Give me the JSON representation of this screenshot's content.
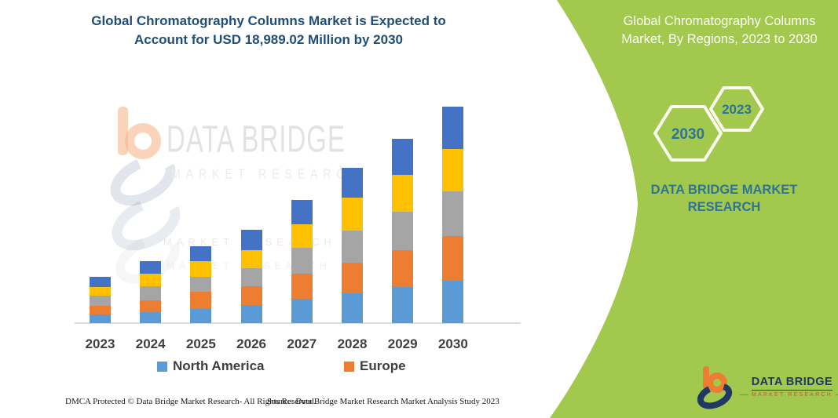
{
  "colors": {
    "accent_green": "#A2C84E",
    "title_blue": "#1F4E79",
    "hex_stroke": "#FAFBEE",
    "brand_teal": "#2E7499",
    "logo_navy": "#1F3864",
    "logo_orange": "#ED7D31",
    "axis_gray": "#DBDBDB"
  },
  "header": {
    "left_title_line1": "Global Chromatography Columns Market is Expected to",
    "left_title_line2": "Account for USD 18,989.02 Million by 2030",
    "right_title_line1": "Global Chromatography Columns",
    "right_title_line2": "Market, By Regions, 2023 to 2030"
  },
  "right_panel": {
    "hexagon_large_label": "2030",
    "hexagon_small_label": "2023",
    "brand_line1": "DATA BRIDGE MARKET",
    "brand_line2": "RESEARCH"
  },
  "watermark": {
    "title": "DATA BRIDGE",
    "subtitle": "MARKET RESEARCH",
    "ghost1": "MARKET RESEARCH",
    "ghost2": "MARKET RESEARCH"
  },
  "chart_data": {
    "type": "bar",
    "stacked": true,
    "title": "Global Chromatography Columns Market, By Regions, 2023 to 2030",
    "xlabel": "",
    "ylabel": "",
    "units": "relative segment heights in px as drawn (no value axis shown); headline anchor: USD 18,989.02 Million total by 2030",
    "grid": false,
    "legend_position": "bottom",
    "categories": [
      "2023",
      "2024",
      "2025",
      "2026",
      "2027",
      "2028",
      "2029",
      "2030"
    ],
    "series": [
      {
        "name": "North America",
        "color": "#5B9BD5",
        "in_legend": true,
        "values": [
          11,
          14,
          18,
          23,
          31,
          38,
          46,
          54
        ]
      },
      {
        "name": "Europe",
        "color": "#ED7D31",
        "in_legend": true,
        "values": [
          11,
          15,
          22,
          24,
          32,
          39,
          47,
          57
        ]
      },
      {
        "name": "unlabeled-gray-region",
        "color": "#A5A5A5",
        "in_legend": false,
        "values": [
          13,
          18,
          19,
          23,
          33,
          41,
          49,
          57
        ]
      },
      {
        "name": "unlabeled-yellow-region",
        "color": "#FFC000",
        "in_legend": false,
        "values": [
          11,
          16,
          20,
          23,
          30,
          42,
          47,
          54
        ]
      },
      {
        "name": "unlabeled-darkblue-region",
        "color": "#4472C4",
        "in_legend": false,
        "values": [
          13,
          16,
          19,
          26,
          31,
          38,
          46,
          54
        ]
      }
    ],
    "stacked_totals": [
      59,
      79,
      98,
      119,
      157,
      198,
      235,
      276
    ]
  },
  "legend": {
    "items": [
      {
        "label": "North America",
        "color": "#5B9BD5"
      },
      {
        "label": "Europe",
        "color": "#ED7D31"
      }
    ]
  },
  "footer": {
    "left": "DMCA Protected © Data Bridge Market Research-  All Rights Reserved.",
    "source": "Source: Data Bridge Market Research  Market Analysis Study 2023",
    "logo_title": "DATA BRIDGE",
    "logo_subtitle": "MARKET RESEARCH"
  }
}
